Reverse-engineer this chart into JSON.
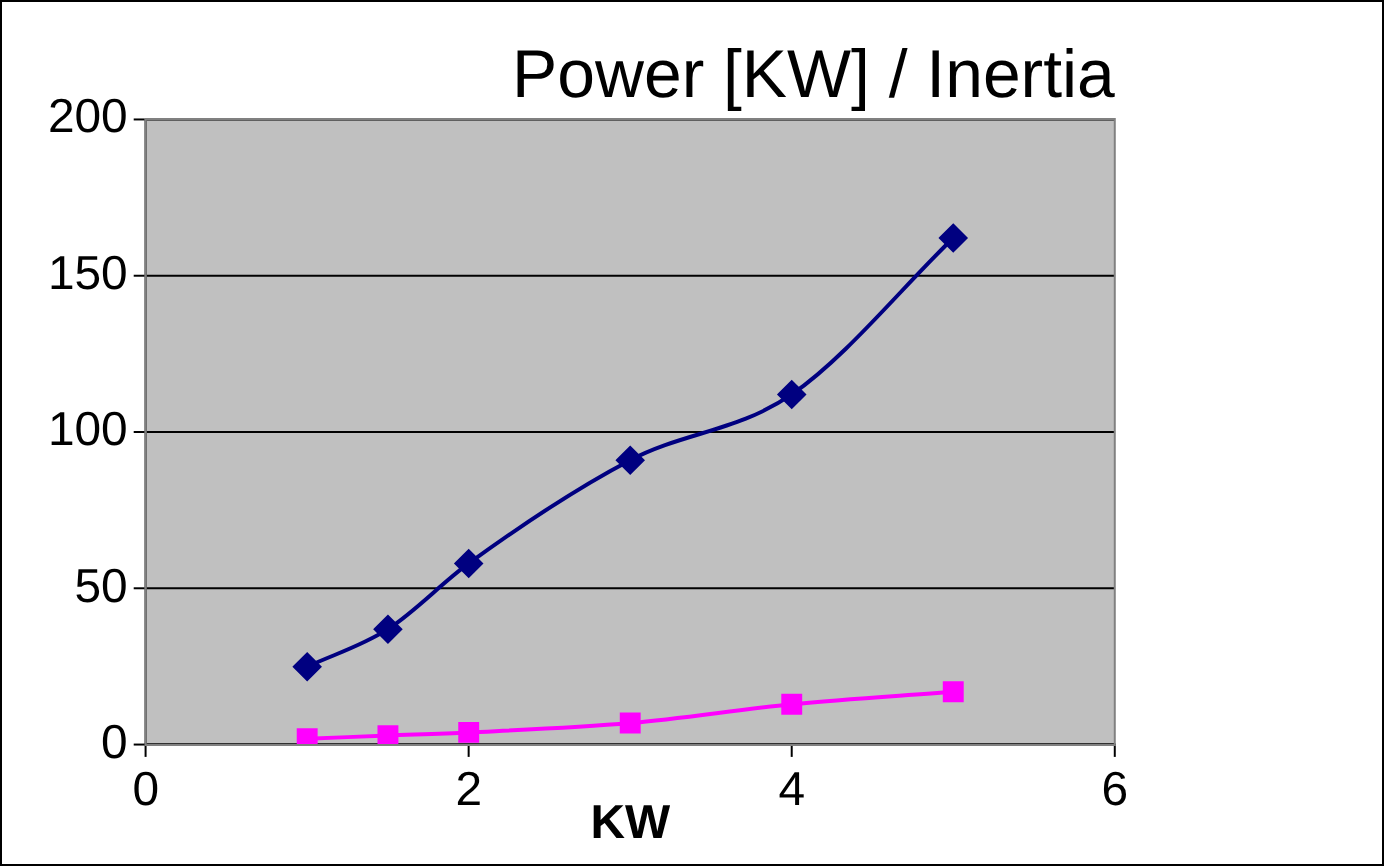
{
  "chart_data": {
    "type": "line",
    "title": "Power [KW] / Inertia",
    "xlabel": "KW",
    "xlim": [
      0,
      6
    ],
    "xticks": [
      0,
      2,
      4,
      6
    ],
    "ylim": [
      0,
      200
    ],
    "yticks": [
      0,
      50,
      100,
      150,
      200
    ],
    "grid": "y",
    "legend": false,
    "series": [
      {
        "color": "#000080",
        "marker": "diamond",
        "x": [
          1,
          1.5,
          2,
          3,
          4,
          5
        ],
        "values": [
          25,
          37,
          58,
          91,
          112,
          162
        ]
      },
      {
        "color": "#ff00ff",
        "marker": "square",
        "x": [
          1,
          1.5,
          2,
          3,
          4,
          5
        ],
        "values": [
          2,
          3,
          4,
          7,
          13,
          17
        ]
      }
    ]
  }
}
